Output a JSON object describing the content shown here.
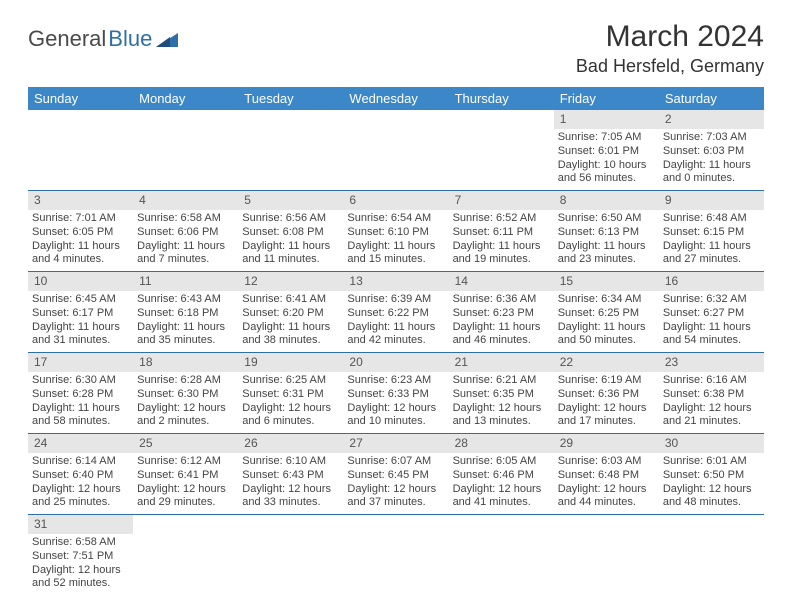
{
  "logo": {
    "text1": "General",
    "text2": "Blue"
  },
  "title": "March 2024",
  "location": "Bad Hersfeld, Germany",
  "colors": {
    "header_bg": "#3B87C8",
    "header_fg": "#ffffff",
    "daynum_bg": "#E6E6E6",
    "rule": "#2F6FA7",
    "text": "#444444"
  },
  "typography": {
    "title_fontsize": 30,
    "location_fontsize": 18,
    "dayheader_fontsize": 13,
    "cell_fontsize": 11
  },
  "day_headers": [
    "Sunday",
    "Monday",
    "Tuesday",
    "Wednesday",
    "Thursday",
    "Friday",
    "Saturday"
  ],
  "weeks": [
    [
      null,
      null,
      null,
      null,
      null,
      {
        "n": "1",
        "sr": "Sunrise: 7:05 AM",
        "ss": "Sunset: 6:01 PM",
        "dl": "Daylight: 10 hours and 56 minutes."
      },
      {
        "n": "2",
        "sr": "Sunrise: 7:03 AM",
        "ss": "Sunset: 6:03 PM",
        "dl": "Daylight: 11 hours and 0 minutes."
      }
    ],
    [
      {
        "n": "3",
        "sr": "Sunrise: 7:01 AM",
        "ss": "Sunset: 6:05 PM",
        "dl": "Daylight: 11 hours and 4 minutes."
      },
      {
        "n": "4",
        "sr": "Sunrise: 6:58 AM",
        "ss": "Sunset: 6:06 PM",
        "dl": "Daylight: 11 hours and 7 minutes."
      },
      {
        "n": "5",
        "sr": "Sunrise: 6:56 AM",
        "ss": "Sunset: 6:08 PM",
        "dl": "Daylight: 11 hours and 11 minutes."
      },
      {
        "n": "6",
        "sr": "Sunrise: 6:54 AM",
        "ss": "Sunset: 6:10 PM",
        "dl": "Daylight: 11 hours and 15 minutes."
      },
      {
        "n": "7",
        "sr": "Sunrise: 6:52 AM",
        "ss": "Sunset: 6:11 PM",
        "dl": "Daylight: 11 hours and 19 minutes."
      },
      {
        "n": "8",
        "sr": "Sunrise: 6:50 AM",
        "ss": "Sunset: 6:13 PM",
        "dl": "Daylight: 11 hours and 23 minutes."
      },
      {
        "n": "9",
        "sr": "Sunrise: 6:48 AM",
        "ss": "Sunset: 6:15 PM",
        "dl": "Daylight: 11 hours and 27 minutes."
      }
    ],
    [
      {
        "n": "10",
        "sr": "Sunrise: 6:45 AM",
        "ss": "Sunset: 6:17 PM",
        "dl": "Daylight: 11 hours and 31 minutes."
      },
      {
        "n": "11",
        "sr": "Sunrise: 6:43 AM",
        "ss": "Sunset: 6:18 PM",
        "dl": "Daylight: 11 hours and 35 minutes."
      },
      {
        "n": "12",
        "sr": "Sunrise: 6:41 AM",
        "ss": "Sunset: 6:20 PM",
        "dl": "Daylight: 11 hours and 38 minutes."
      },
      {
        "n": "13",
        "sr": "Sunrise: 6:39 AM",
        "ss": "Sunset: 6:22 PM",
        "dl": "Daylight: 11 hours and 42 minutes."
      },
      {
        "n": "14",
        "sr": "Sunrise: 6:36 AM",
        "ss": "Sunset: 6:23 PM",
        "dl": "Daylight: 11 hours and 46 minutes."
      },
      {
        "n": "15",
        "sr": "Sunrise: 6:34 AM",
        "ss": "Sunset: 6:25 PM",
        "dl": "Daylight: 11 hours and 50 minutes."
      },
      {
        "n": "16",
        "sr": "Sunrise: 6:32 AM",
        "ss": "Sunset: 6:27 PM",
        "dl": "Daylight: 11 hours and 54 minutes."
      }
    ],
    [
      {
        "n": "17",
        "sr": "Sunrise: 6:30 AM",
        "ss": "Sunset: 6:28 PM",
        "dl": "Daylight: 11 hours and 58 minutes."
      },
      {
        "n": "18",
        "sr": "Sunrise: 6:28 AM",
        "ss": "Sunset: 6:30 PM",
        "dl": "Daylight: 12 hours and 2 minutes."
      },
      {
        "n": "19",
        "sr": "Sunrise: 6:25 AM",
        "ss": "Sunset: 6:31 PM",
        "dl": "Daylight: 12 hours and 6 minutes."
      },
      {
        "n": "20",
        "sr": "Sunrise: 6:23 AM",
        "ss": "Sunset: 6:33 PM",
        "dl": "Daylight: 12 hours and 10 minutes."
      },
      {
        "n": "21",
        "sr": "Sunrise: 6:21 AM",
        "ss": "Sunset: 6:35 PM",
        "dl": "Daylight: 12 hours and 13 minutes."
      },
      {
        "n": "22",
        "sr": "Sunrise: 6:19 AM",
        "ss": "Sunset: 6:36 PM",
        "dl": "Daylight: 12 hours and 17 minutes."
      },
      {
        "n": "23",
        "sr": "Sunrise: 6:16 AM",
        "ss": "Sunset: 6:38 PM",
        "dl": "Daylight: 12 hours and 21 minutes."
      }
    ],
    [
      {
        "n": "24",
        "sr": "Sunrise: 6:14 AM",
        "ss": "Sunset: 6:40 PM",
        "dl": "Daylight: 12 hours and 25 minutes."
      },
      {
        "n": "25",
        "sr": "Sunrise: 6:12 AM",
        "ss": "Sunset: 6:41 PM",
        "dl": "Daylight: 12 hours and 29 minutes."
      },
      {
        "n": "26",
        "sr": "Sunrise: 6:10 AM",
        "ss": "Sunset: 6:43 PM",
        "dl": "Daylight: 12 hours and 33 minutes."
      },
      {
        "n": "27",
        "sr": "Sunrise: 6:07 AM",
        "ss": "Sunset: 6:45 PM",
        "dl": "Daylight: 12 hours and 37 minutes."
      },
      {
        "n": "28",
        "sr": "Sunrise: 6:05 AM",
        "ss": "Sunset: 6:46 PM",
        "dl": "Daylight: 12 hours and 41 minutes."
      },
      {
        "n": "29",
        "sr": "Sunrise: 6:03 AM",
        "ss": "Sunset: 6:48 PM",
        "dl": "Daylight: 12 hours and 44 minutes."
      },
      {
        "n": "30",
        "sr": "Sunrise: 6:01 AM",
        "ss": "Sunset: 6:50 PM",
        "dl": "Daylight: 12 hours and 48 minutes."
      }
    ],
    [
      {
        "n": "31",
        "sr": "Sunrise: 6:58 AM",
        "ss": "Sunset: 7:51 PM",
        "dl": "Daylight: 12 hours and 52 minutes."
      },
      null,
      null,
      null,
      null,
      null,
      null
    ]
  ]
}
